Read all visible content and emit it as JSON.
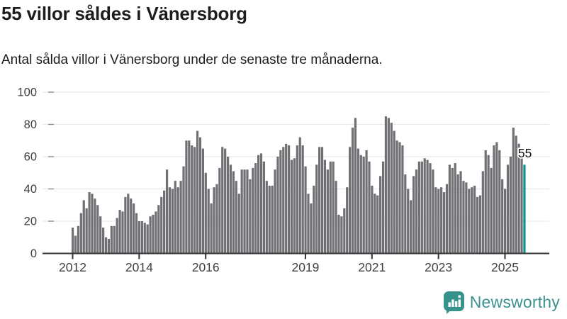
{
  "header": {
    "title": "55 villor såldes i Vänersborg",
    "subtitle": "Antal sålda villor i Vänersborg under de senaste tre månaderna."
  },
  "chart_data": {
    "type": "bar",
    "title": "55 villor såldes i Vänersborg",
    "subtitle": "Antal sålda villor i Vänersborg under de senaste tre månaderna.",
    "x_start": "2012-01",
    "x_frequency": "monthly",
    "values": [
      16,
      11,
      17,
      25,
      33,
      28,
      38,
      37,
      34,
      30,
      23,
      16,
      10,
      9,
      17,
      17,
      22,
      27,
      26,
      35,
      37,
      34,
      31,
      25,
      20,
      20,
      19,
      18,
      23,
      24,
      26,
      30,
      35,
      39,
      52,
      41,
      40,
      45,
      41,
      45,
      54,
      70,
      70,
      67,
      66,
      76,
      72,
      65,
      50,
      40,
      31,
      41,
      43,
      53,
      66,
      65,
      60,
      55,
      51,
      45,
      37,
      52,
      52,
      52,
      46,
      53,
      56,
      61,
      62,
      57,
      45,
      42,
      42,
      52,
      60,
      64,
      66,
      68,
      67,
      58,
      59,
      67,
      72,
      67,
      54,
      37,
      31,
      42,
      55,
      66,
      66,
      58,
      52,
      57,
      57,
      45,
      24,
      23,
      28,
      41,
      66,
      78,
      84,
      65,
      61,
      60,
      64,
      57,
      42,
      37,
      36,
      48,
      57,
      85,
      84,
      81,
      76,
      70,
      69,
      67,
      49,
      40,
      33,
      48,
      52,
      57,
      57,
      59,
      58,
      56,
      52,
      41,
      40,
      41,
      38,
      43,
      55,
      53,
      56,
      49,
      51,
      45,
      44,
      40,
      41,
      42,
      35,
      36,
      51,
      64,
      61,
      53,
      67,
      69,
      64,
      46,
      40,
      55,
      60,
      78,
      73,
      68,
      60,
      55
    ],
    "highlight": {
      "position": "last",
      "value": 55,
      "label": "55",
      "color": "#0e918d"
    },
    "ylim": [
      0,
      100
    ],
    "yticks": [
      0,
      20,
      40,
      60,
      80,
      100
    ],
    "xticks": [
      2012,
      2014,
      2016,
      2019,
      2021,
      2023,
      2025
    ],
    "grid": true,
    "legend": "none",
    "bar_color": "#706f74",
    "grid_color": "#e9e9e9",
    "axis_color": "#333333",
    "tick_label_color": "#3f3f3f"
  },
  "footer": {
    "brand": "Newsworthy",
    "brand_color": "#3a938e"
  }
}
